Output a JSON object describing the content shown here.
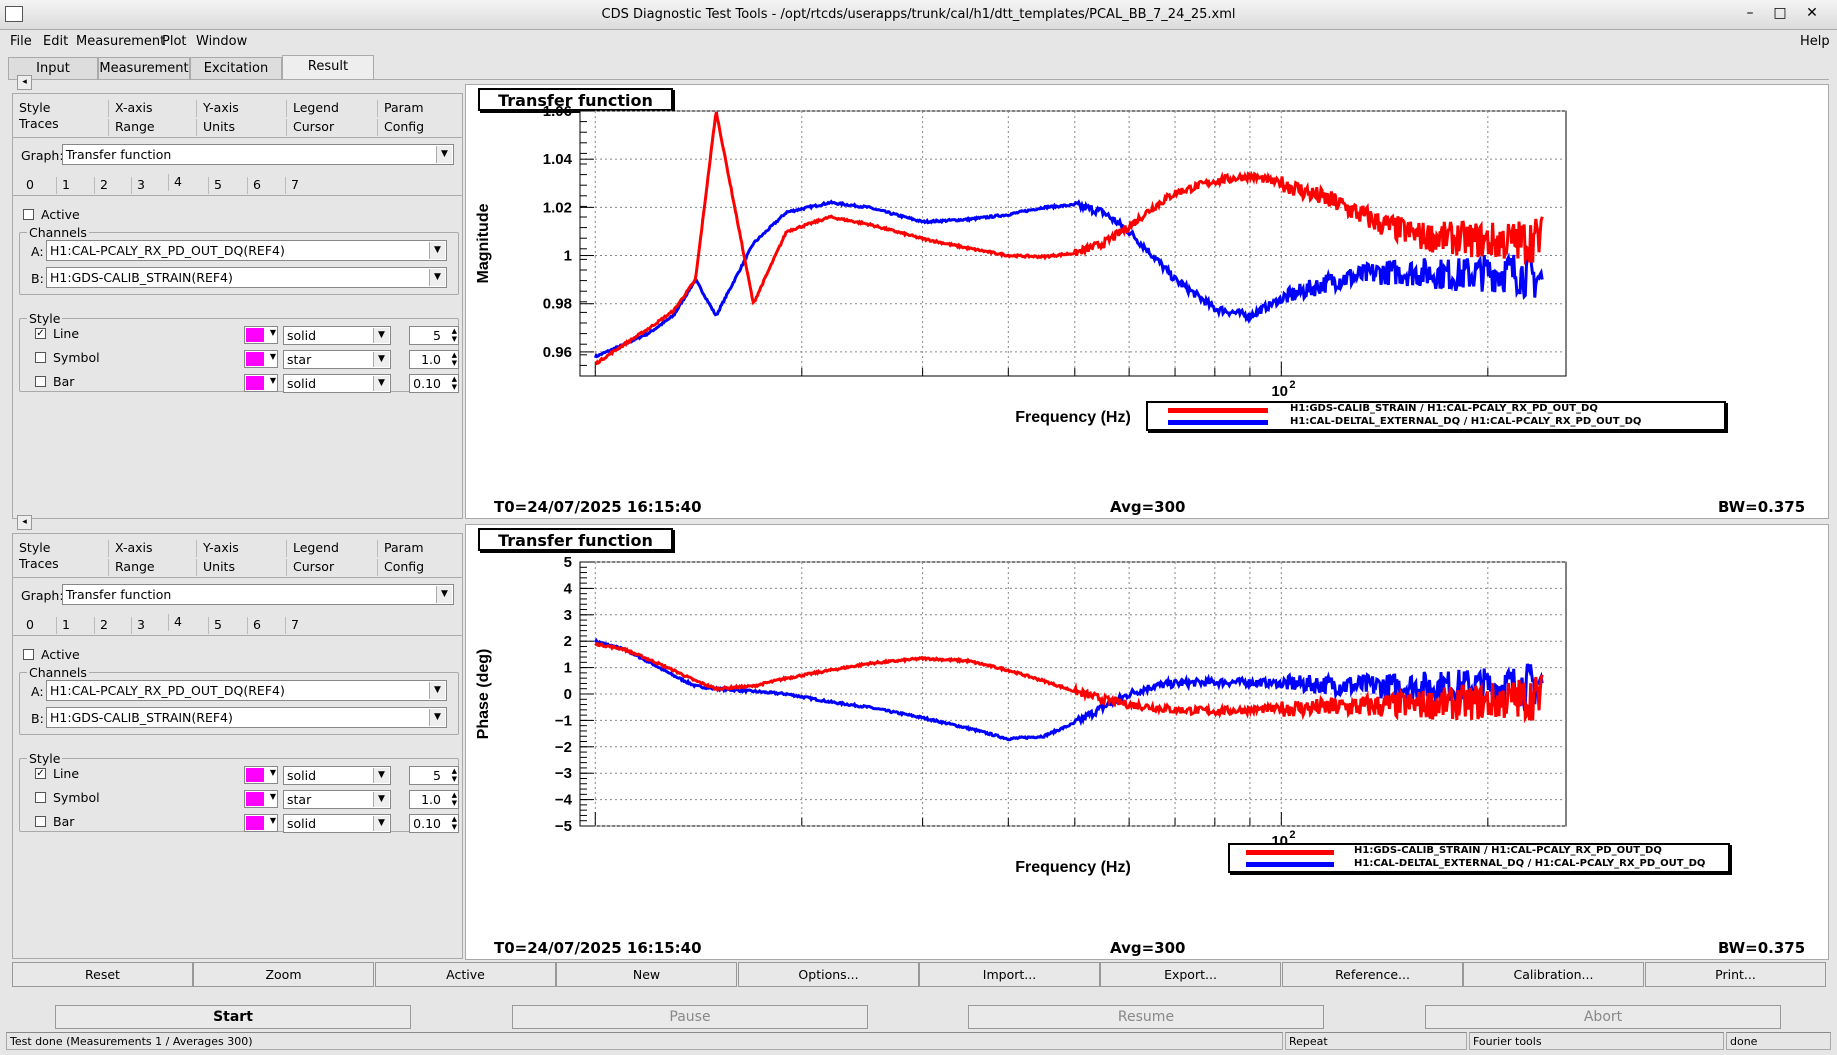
{
  "window": {
    "title": "CDS Diagnostic Test Tools - /opt/rtcds/userapps/trunk/cal/h1/dtt_templates/PCAL_BB_7_24_25.xml",
    "minimize": "–",
    "maximize": "□",
    "close": "✕"
  },
  "menu": {
    "file": "File",
    "edit": "Edit",
    "measurement": "Measurement",
    "plot": "Plot",
    "window": "Window",
    "help": "Help"
  },
  "tabs": {
    "input": "Input",
    "measurement": "Measurement",
    "excitation": "Excitation",
    "result": "Result"
  },
  "panel": {
    "ptabs_row1": [
      "Style",
      "X-axis",
      "Y-axis",
      "Legend",
      "Param"
    ],
    "ptabs_row2": [
      "Traces",
      "Range",
      "Units",
      "Cursor",
      "Config"
    ],
    "graph_label": "Graph:",
    "graph_value": "Transfer function",
    "trace_tabs": [
      "0",
      "1",
      "2",
      "3",
      "4",
      "5",
      "6",
      "7"
    ],
    "active_label": "Active",
    "channels_label": "Channels",
    "a_label": "A:",
    "a_value": "H1:CAL-PCALY_RX_PD_OUT_DQ(REF4)",
    "b_label": "B:",
    "b_value": "H1:GDS-CALIB_STRAIN(REF4)",
    "style_label": "Style",
    "line_label": "Line",
    "line_style": "solid",
    "line_width": "5",
    "symbol_label": "Symbol",
    "symbol_style": "star",
    "symbol_size": "1.0",
    "bar_label": "Bar",
    "bar_style": "solid",
    "bar_width": "0.10",
    "swatch_color": "#ff00ff",
    "line_checked": "✓"
  },
  "plot_top": {
    "title": "Transfer function",
    "ylabel": "Magnitude",
    "xlabel": "Frequency (Hz)",
    "xtick": "10",
    "xtick_exp": "2",
    "yticks": [
      "1.06",
      "1.04",
      "1.02",
      "1",
      "0.98",
      "0.96"
    ],
    "t0": "T0=24/07/2025 16:15:40",
    "avg": "Avg=300",
    "bw": "BW=0.375",
    "legend": [
      "H1:GDS-CALIB_STRAIN / H1:CAL-PCALY_RX_PD_OUT_DQ",
      "H1:CAL-DELTAL_EXTERNAL_DQ / H1:CAL-PCALY_RX_PD_OUT_DQ"
    ]
  },
  "plot_bottom": {
    "title": "Transfer function",
    "ylabel": "Phase (deg)",
    "xlabel": "Frequency (Hz)",
    "xtick": "10",
    "xtick_exp": "2",
    "yticks": [
      "5",
      "4",
      "3",
      "2",
      "1",
      "0",
      "−1",
      "−2",
      "−3",
      "−4",
      "−5"
    ],
    "t0": "T0=24/07/2025 16:15:40",
    "avg": "Avg=300",
    "bw": "BW=0.375",
    "legend": [
      "H1:GDS-CALIB_STRAIN / H1:CAL-PCALY_RX_PD_OUT_DQ",
      "H1:CAL-DELTAL_EXTERNAL_DQ / H1:CAL-PCALY_RX_PD_OUT_DQ"
    ]
  },
  "colors": {
    "red_trace": "#ff0000",
    "blue_trace": "#0000ff"
  },
  "buttons": [
    "Reset",
    "Zoom",
    "Active",
    "New",
    "Options...",
    "Import...",
    "Export...",
    "Reference...",
    "Calibration...",
    "Print..."
  ],
  "run": {
    "start": "Start",
    "pause": "Pause",
    "resume": "Resume",
    "abort": "Abort"
  },
  "status": {
    "msg": "Test done (Measurements 1 / Averages 300)",
    "repeat": "Repeat",
    "tools": "Fourier tools",
    "state": "done"
  },
  "chart_data": [
    {
      "type": "line",
      "title": "Transfer function",
      "xlabel": "Frequency (Hz)",
      "ylabel": "Magnitude",
      "xscale": "log",
      "ylim": [
        0.95,
        1.06
      ],
      "series": [
        {
          "name": "H1:GDS-CALIB_STRAIN / H1:CAL-PCALY_RX_PD_OUT_DQ",
          "color": "#ff0000",
          "x": [
            10,
            11,
            12,
            13,
            14,
            15,
            17,
            19,
            22,
            25,
            30,
            35,
            40,
            45,
            50,
            55,
            60,
            65,
            70,
            80,
            90,
            100,
            120,
            140,
            160,
            180,
            200,
            220,
            240
          ],
          "y": [
            0.955,
            0.963,
            0.97,
            0.977,
            0.99,
            1.06,
            0.98,
            1.01,
            1.016,
            1.013,
            1.007,
            1.003,
            1.0,
            0.9995,
            1.001,
            1.005,
            1.012,
            1.02,
            1.026,
            1.031,
            1.033,
            1.03,
            1.022,
            1.013,
            1.008,
            1.007,
            1.006,
            1.006,
            1.007
          ]
        },
        {
          "name": "H1:CAL-DELTAL_EXTERNAL_DQ / H1:CAL-PCALY_RX_PD_OUT_DQ",
          "color": "#0000ff",
          "x": [
            10,
            11,
            12,
            13,
            14,
            15,
            17,
            19,
            22,
            25,
            30,
            35,
            40,
            45,
            50,
            55,
            60,
            65,
            70,
            80,
            90,
            100,
            120,
            140,
            160,
            180,
            200,
            220,
            240
          ],
          "y": [
            0.958,
            0.963,
            0.968,
            0.975,
            0.99,
            0.975,
            1.005,
            1.018,
            1.022,
            1.02,
            1.014,
            1.015,
            1.017,
            1.02,
            1.021,
            1.018,
            1.01,
            1.0,
            0.99,
            0.978,
            0.975,
            0.982,
            0.99,
            0.993,
            0.993,
            0.992,
            0.993,
            0.993,
            0.99
          ]
        }
      ]
    },
    {
      "type": "line",
      "title": "Transfer function",
      "xlabel": "Frequency (Hz)",
      "ylabel": "Phase (deg)",
      "xscale": "log",
      "ylim": [
        -5,
        5
      ],
      "series": [
        {
          "name": "H1:GDS-CALIB_STRAIN / H1:CAL-PCALY_RX_PD_OUT_DQ",
          "color": "#ff0000",
          "x": [
            10,
            11,
            12,
            13,
            14,
            15,
            17,
            19,
            22,
            25,
            30,
            35,
            40,
            45,
            50,
            55,
            60,
            65,
            70,
            80,
            90,
            100,
            120,
            140,
            160,
            180,
            200,
            220,
            240
          ],
          "y": [
            1.9,
            1.7,
            1.3,
            0.9,
            0.5,
            0.2,
            0.3,
            0.6,
            0.9,
            1.15,
            1.35,
            1.25,
            0.9,
            0.5,
            0.1,
            -0.2,
            -0.4,
            -0.5,
            -0.6,
            -0.65,
            -0.6,
            -0.55,
            -0.5,
            -0.45,
            -0.4,
            -0.35,
            -0.3,
            -0.2,
            -0.1
          ]
        },
        {
          "name": "H1:CAL-DELTAL_EXTERNAL_DQ / H1:CAL-PCALY_RX_PD_OUT_DQ",
          "color": "#0000ff",
          "x": [
            10,
            11,
            12,
            13,
            14,
            15,
            17,
            19,
            22,
            25,
            30,
            35,
            40,
            45,
            50,
            55,
            60,
            65,
            70,
            80,
            90,
            100,
            120,
            140,
            160,
            180,
            200,
            220,
            240
          ],
          "y": [
            2.0,
            1.7,
            1.2,
            0.7,
            0.3,
            0.2,
            0.1,
            0.0,
            -0.3,
            -0.5,
            -0.9,
            -1.3,
            -1.7,
            -1.6,
            -1.1,
            -0.5,
            0.0,
            0.3,
            0.4,
            0.45,
            0.45,
            0.4,
            0.35,
            0.3,
            0.3,
            0.3,
            0.3,
            0.3,
            0.4
          ]
        }
      ]
    }
  ]
}
